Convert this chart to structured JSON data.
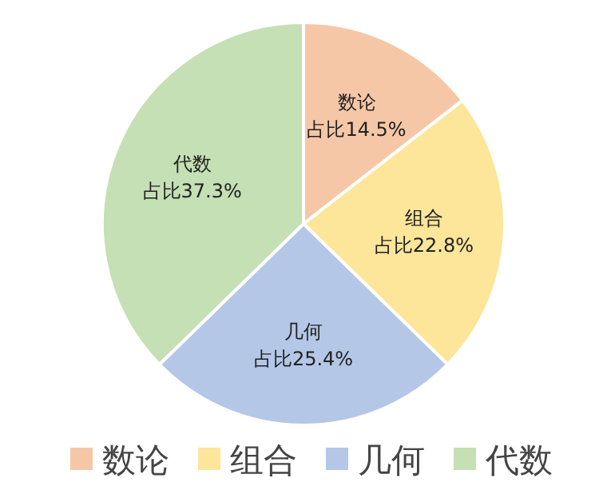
{
  "chart_data": {
    "type": "pie",
    "categories": [
      "数论",
      "组合",
      "几何",
      "代数"
    ],
    "values": [
      14.5,
      22.8,
      25.4,
      37.3
    ],
    "colors": [
      "#f6c7a6",
      "#fde59a",
      "#b4c7e7",
      "#c5e0b4"
    ],
    "value_labels": [
      "占比14.5%",
      "占比22.8%",
      "占比25.4%",
      "占比37.3%"
    ],
    "legend": "bottom"
  }
}
